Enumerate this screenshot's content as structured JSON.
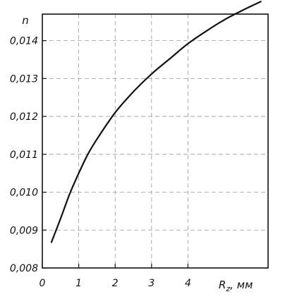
{
  "chart_data": {
    "type": "line",
    "ylabel": "n",
    "xlabel": "R",
    "xlabel_sub": "z",
    "xlabel_unit": ", мм",
    "xlim": [
      0,
      6.2
    ],
    "ylim": [
      0.008,
      0.0147
    ],
    "x_ticks": [
      {
        "value": 0,
        "label": "0"
      },
      {
        "value": 1,
        "label": "1"
      },
      {
        "value": 2,
        "label": "2"
      },
      {
        "value": 3,
        "label": "3"
      },
      {
        "value": 4,
        "label": "4"
      }
    ],
    "y_ticks": [
      {
        "value": 0.008,
        "label": "0,008"
      },
      {
        "value": 0.009,
        "label": "0,009"
      },
      {
        "value": 0.01,
        "label": "0,010"
      },
      {
        "value": 0.011,
        "label": "0,011"
      },
      {
        "value": 0.012,
        "label": "0,012"
      },
      {
        "value": 0.013,
        "label": "0,013"
      },
      {
        "value": 0.014,
        "label": "0,014"
      }
    ],
    "grid": true,
    "series": [
      {
        "color": "#111111",
        "x": [
          0.25,
          0.5,
          0.75,
          1.0,
          1.25,
          1.5,
          2.0,
          2.5,
          3.0,
          3.5,
          4.0,
          4.5,
          5.0,
          5.5,
          6.0
        ],
        "y": [
          0.00868,
          0.0093,
          0.00995,
          0.0105,
          0.011,
          0.0114,
          0.0121,
          0.01265,
          0.01312,
          0.01352,
          0.01392,
          0.01425,
          0.01455,
          0.0148,
          0.01503
        ]
      }
    ]
  }
}
